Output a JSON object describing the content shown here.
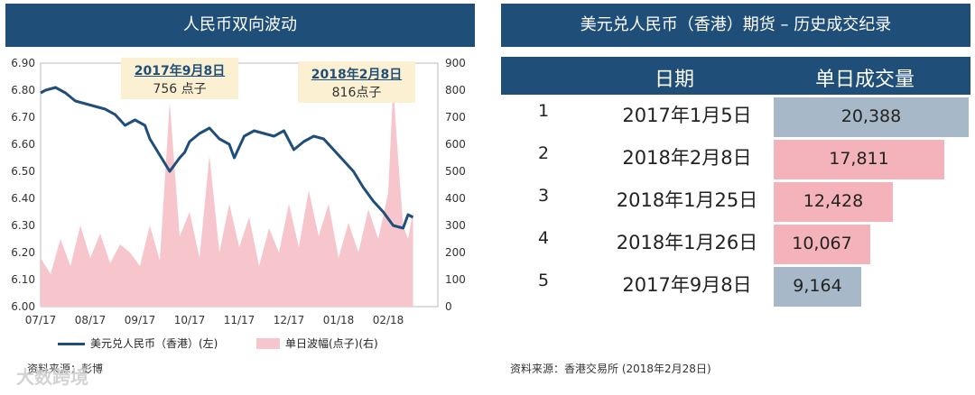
{
  "left_title": "人民币双向波动",
  "right_title": "美元兑人民币（香港）期货 – 历史成交纪录",
  "chart_data": {
    "type": "line",
    "title": "",
    "x_ticks": [
      "07/17",
      "08/17",
      "09/17",
      "10/17",
      "11/17",
      "12/17",
      "01/18",
      "02/18"
    ],
    "y_left_ticks": [
      "6.90",
      "6.80",
      "6.70",
      "6.60",
      "6.50",
      "6.40",
      "6.30",
      "6.20",
      "6.10",
      "6.00"
    ],
    "y_right_ticks": [
      "900",
      "800",
      "700",
      "600",
      "500",
      "400",
      "300",
      "200",
      "100",
      "0"
    ],
    "ylim_left": [
      6.0,
      6.9
    ],
    "ylim_right": [
      0,
      900
    ],
    "series": [
      {
        "name": "美元兑人民币（香港）(左)",
        "axis": "left",
        "color": "#1f4e79",
        "x": [
          0.0,
          0.1,
          0.3,
          0.5,
          0.7,
          0.9,
          1.1,
          1.3,
          1.5,
          1.7,
          1.9,
          2.1,
          2.2,
          2.4,
          2.6,
          2.8,
          2.9,
          3.0,
          3.2,
          3.4,
          3.6,
          3.8,
          3.9,
          4.1,
          4.3,
          4.5,
          4.7,
          4.9,
          5.1,
          5.3,
          5.5,
          5.7,
          5.9,
          6.1,
          6.3,
          6.5,
          6.7,
          6.9,
          7.1,
          7.3,
          7.4,
          7.5
        ],
        "y": [
          6.79,
          6.8,
          6.81,
          6.79,
          6.76,
          6.75,
          6.74,
          6.73,
          6.71,
          6.67,
          6.69,
          6.67,
          6.62,
          6.56,
          6.5,
          6.55,
          6.57,
          6.61,
          6.64,
          6.66,
          6.62,
          6.6,
          6.55,
          6.63,
          6.65,
          6.64,
          6.63,
          6.65,
          6.58,
          6.61,
          6.63,
          6.62,
          6.58,
          6.54,
          6.5,
          6.44,
          6.39,
          6.35,
          6.3,
          6.29,
          6.34,
          6.33
        ]
      },
      {
        "name": "单日波幅(点子)(右)",
        "axis": "right",
        "color": "#f6c6cc",
        "x": [
          0.0,
          0.2,
          0.4,
          0.6,
          0.8,
          1.0,
          1.2,
          1.4,
          1.6,
          1.8,
          2.0,
          2.2,
          2.4,
          2.6,
          2.8,
          3.0,
          3.2,
          3.4,
          3.6,
          3.8,
          4.0,
          4.2,
          4.4,
          4.6,
          4.8,
          5.0,
          5.2,
          5.4,
          5.6,
          5.8,
          6.0,
          6.2,
          6.4,
          6.6,
          6.8,
          7.0,
          7.1,
          7.2,
          7.3,
          7.4,
          7.5
        ],
        "y": [
          180,
          120,
          250,
          150,
          300,
          180,
          270,
          160,
          230,
          200,
          150,
          300,
          170,
          756,
          260,
          350,
          180,
          560,
          200,
          380,
          220,
          330,
          150,
          290,
          200,
          380,
          220,
          430,
          260,
          380,
          180,
          310,
          200,
          360,
          250,
          420,
          816,
          550,
          300,
          250,
          350
        ]
      }
    ],
    "annotations": [
      {
        "title": "2017年9月8日",
        "text": "756 点子"
      },
      {
        "title": "2018年2月8日",
        "text": "816点子"
      }
    ]
  },
  "legend": {
    "line_label": "美元兑人民币（香港）(左)",
    "area_label": "单日波幅(点子)(右)"
  },
  "left_source": "资料来源：彭博",
  "table": {
    "headers": [
      "日期",
      "单日成交量"
    ],
    "rows": [
      {
        "rank": "1",
        "date": "2017年1月5日",
        "value": "20,388",
        "amount": 20388,
        "color": "#a7b9c9"
      },
      {
        "rank": "2",
        "date": "2018年2月8日",
        "value": "17,811",
        "amount": 17811,
        "color": "#f4b3bb"
      },
      {
        "rank": "3",
        "date": "2018年1月25日",
        "value": "12,428",
        "amount": 12428,
        "color": "#f4b3bb"
      },
      {
        "rank": "4",
        "date": "2018年1月26日",
        "value": "10,067",
        "amount": 10067,
        "color": "#f4b3bb"
      },
      {
        "rank": "5",
        "date": "2017年9月8日",
        "value": "9,164",
        "amount": 9164,
        "color": "#a7b9c9"
      }
    ]
  },
  "right_source": "资料来源：香港交易所 (2018年2月28日)",
  "watermark": "大数跨境"
}
